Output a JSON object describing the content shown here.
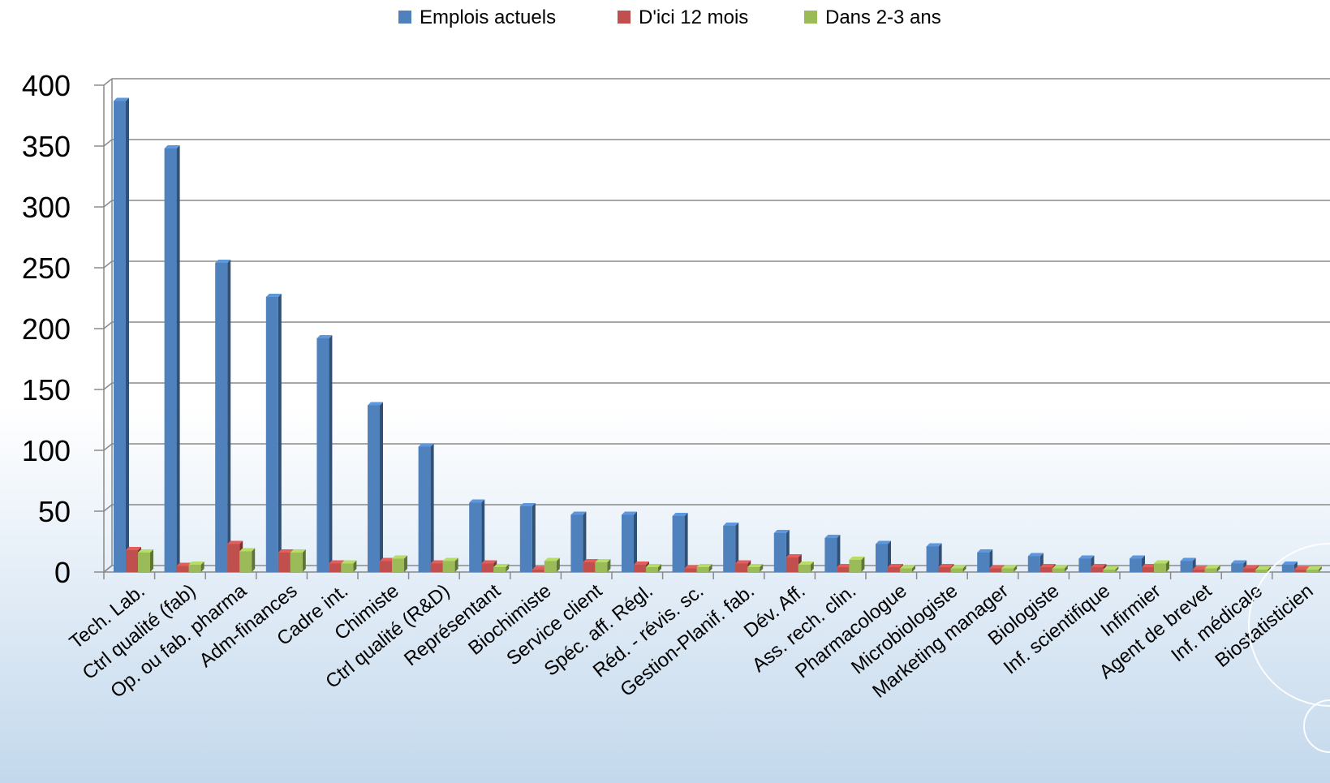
{
  "chart_data": {
    "type": "bar",
    "categories": [
      "Tech. Lab.",
      "Ctrl qualité (fab)",
      "Op. ou fab. pharma",
      "Adm-finances",
      "Cadre int.",
      "Chimiste",
      "Ctrl qualité (R&D)",
      "Représentant",
      "Biochimiste",
      "Service client",
      "Spéc. aff. Régl.",
      "Réd. - révis. sc.",
      "Gestion-Planif. fab.",
      "Dév. Aff.",
      "Ass. rech. clin.",
      "Pharmacologue",
      "Microbiologiste",
      "Marketing manager",
      "Biologiste",
      "Inf. scientifique",
      "Infirmier",
      "Agent de brevet",
      "Inf. médicale",
      "Biostatisticien"
    ],
    "series": [
      {
        "name": "Emplois actuels",
        "color": "#4f81bd",
        "values": [
          387,
          348,
          254,
          226,
          192,
          137,
          103,
          57,
          54,
          47,
          47,
          46,
          38,
          32,
          28,
          23,
          21,
          16,
          13,
          11,
          11,
          9,
          7,
          6
        ]
      },
      {
        "name": "D'ici 12 mois",
        "color": "#c0504d",
        "values": [
          18,
          5,
          23,
          16,
          7,
          9,
          7,
          7,
          2,
          8,
          6,
          3,
          7,
          12,
          4,
          4,
          4,
          3,
          4,
          4,
          4,
          2,
          3,
          2
        ]
      },
      {
        "name": "Dans 2-3 ans",
        "color": "#9bbb59",
        "values": [
          16,
          6,
          17,
          16,
          7,
          11,
          9,
          4,
          9,
          8,
          4,
          4,
          4,
          6,
          10,
          3,
          3,
          3,
          3,
          2,
          7,
          3,
          2,
          2
        ]
      }
    ],
    "ylim": [
      0,
      400
    ],
    "yticks": [
      0,
      50,
      100,
      150,
      200,
      250,
      300,
      350,
      400
    ],
    "grid": true,
    "legend": "top-center",
    "title": "",
    "xlabel": "",
    "ylabel": ""
  }
}
